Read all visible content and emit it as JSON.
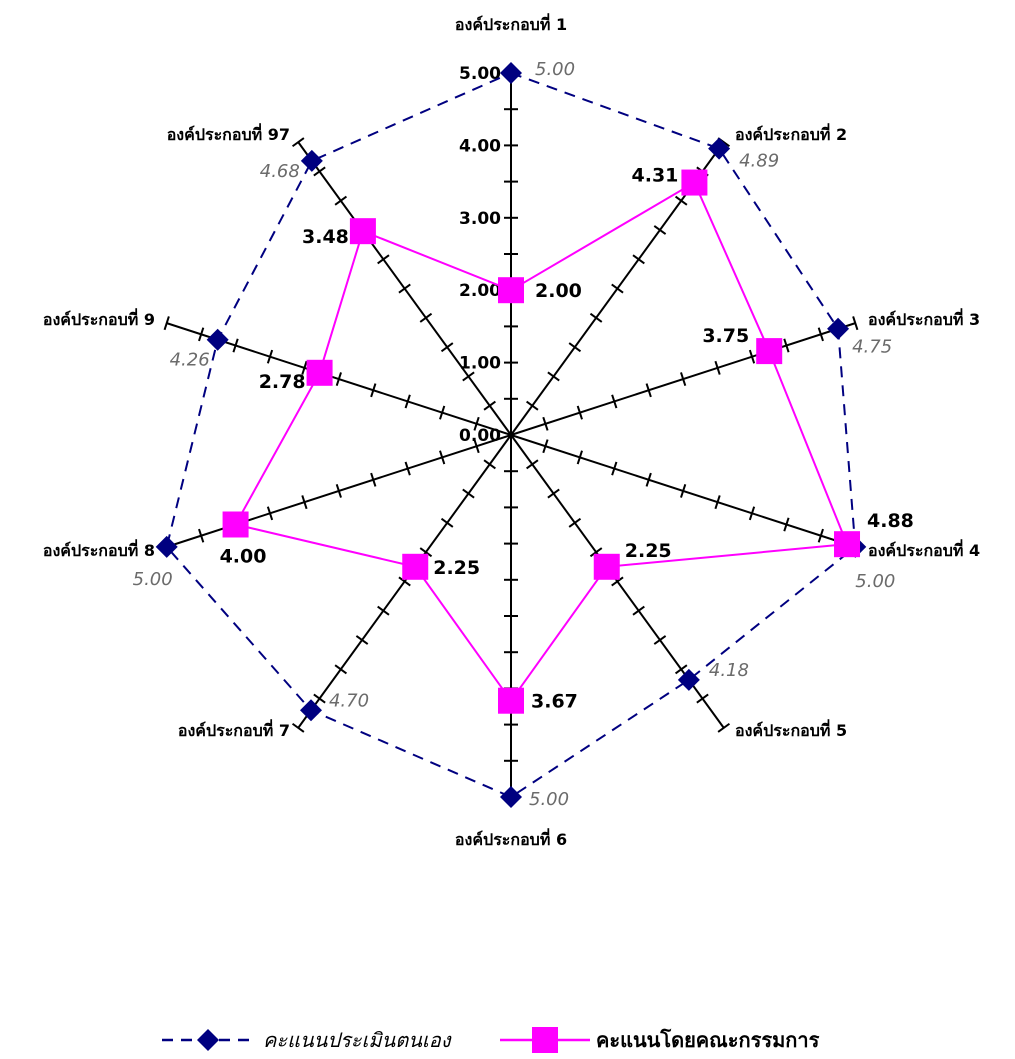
{
  "chart_data": {
    "type": "radar",
    "categories": [
      "องค์ประกอบที่ 1",
      "องค์ประกอบที่ 2",
      "องค์ประกอบที่ 3",
      "องค์ประกอบที่ 4",
      "องค์ประกอบที่ 5",
      "องค์ประกอบที่ 6",
      "องค์ประกอบที่ 7",
      "องค์ประกอบที่ 8",
      "องค์ประกอบที่ 9",
      "องค์ประกอบที่ 97"
    ],
    "scale_ticks": [
      "0.00",
      "1.00",
      "2.00",
      "3.00",
      "4.00",
      "5.00"
    ],
    "rmax": 5,
    "series": [
      {
        "name": "คะแนนประเมินตนเอง",
        "values": [
          5.0,
          4.89,
          4.75,
          5.0,
          4.18,
          5.0,
          4.7,
          5.0,
          4.26,
          4.68
        ],
        "labels": [
          "5.00",
          "4.89",
          "4.75",
          "5.00",
          "4.18",
          "5.00",
          "4.70",
          "5.00",
          "4.26",
          "4.68"
        ],
        "color": "#000080",
        "line_style": "dashed",
        "marker": "diamond"
      },
      {
        "name": "คะแนนโดยคณะกรรมการ",
        "values": [
          2.0,
          4.31,
          3.75,
          4.88,
          2.25,
          3.67,
          2.25,
          4.0,
          2.78,
          3.48
        ],
        "labels": [
          "2.00",
          "4.31",
          "3.75",
          "4.88",
          "2.25",
          "3.67",
          "2.25",
          "4.00",
          "2.78",
          "3.48"
        ],
        "color": "#ff00ff",
        "line_style": "solid",
        "marker": "square"
      }
    ],
    "legend_position": "bottom"
  }
}
